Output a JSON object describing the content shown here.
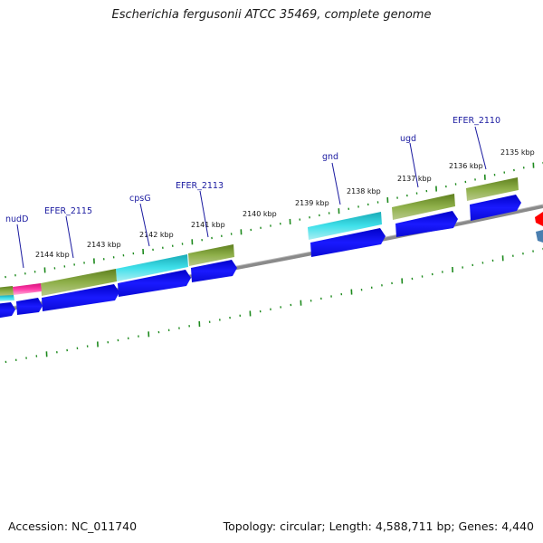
{
  "header": {
    "title": "Escherichia fergusonii ATCC 35469, complete genome"
  },
  "footer": {
    "accession": "Accession: NC_011740",
    "summary": "Topology: circular; Length: 4,588,711 bp; Genes: 4,440"
  },
  "map": {
    "kbp_labels": [
      "2135 kbp",
      "2136 kbp",
      "2137 kbp",
      "2138 kbp",
      "2139 kbp",
      "2140 kbp",
      "2141 kbp",
      "2142 kbp",
      "2143 kbp",
      "2144 kbp"
    ],
    "gene_labels": [
      "EFER_2110",
      "ugd",
      "gnd",
      "EFER_2113",
      "cpsG",
      "EFER_2115",
      "nudD"
    ]
  },
  "colors": {
    "backbone": "#7a7a7a",
    "tick": "#1d8a1d",
    "cds_blue": "#1414e6",
    "olive": "#6b8e23",
    "cyan": "#22c5d0",
    "pink": "#ff1493",
    "label_blue": "#1a1aa0",
    "red": "#ff0000",
    "steel": "#4a7fb0"
  }
}
